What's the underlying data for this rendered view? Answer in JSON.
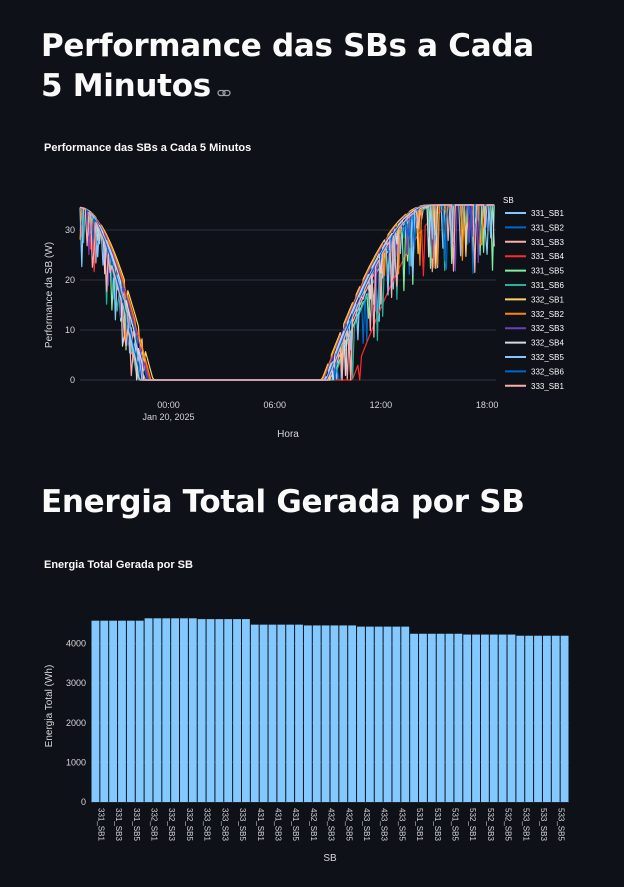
{
  "section1": {
    "heading": "Performance das SBs a Cada 5 Minutos"
  },
  "section2": {
    "heading": "Energia Total Gerada por SB"
  },
  "link_icon": "link-icon",
  "colors": {
    "background": "#0e1117",
    "grid": "#31333f",
    "bar": "#83c9ff",
    "text": "#fafafa",
    "axis_text": "#d5d6d9"
  },
  "chart_data": [
    {
      "type": "line",
      "title": "Performance das SBs a Cada 5 Minutos",
      "xlabel": "Hora",
      "ylabel": "Performance da SB (W)",
      "x_ticks": [
        {
          "time": "2025-01-20 00:00",
          "label": "00:00",
          "sublabel": "Jan 20, 2025"
        },
        {
          "time": "2025-01-20 06:00",
          "label": "06:00",
          "sublabel": ""
        },
        {
          "time": "2025-01-20 12:00",
          "label": "12:00",
          "sublabel": ""
        },
        {
          "time": "2025-01-20 18:00",
          "label": "18:00",
          "sublabel": ""
        }
      ],
      "x_range": [
        "2025-01-19 19:00",
        "2025-01-20 18:30"
      ],
      "y_ticks": [
        0,
        10,
        20,
        30
      ],
      "ylim": [
        -2,
        36
      ],
      "grid": true,
      "legend_title": "SB",
      "legend_position": "right",
      "series": [
        {
          "name": "331_SB1",
          "color": "#83c9ff"
        },
        {
          "name": "331_SB2",
          "color": "#0068c9"
        },
        {
          "name": "331_SB3",
          "color": "#ffabab"
        },
        {
          "name": "331_SB4",
          "color": "#ff2b2b"
        },
        {
          "name": "331_SB5",
          "color": "#7defa1"
        },
        {
          "name": "331_SB6",
          "color": "#29b09d"
        },
        {
          "name": "332_SB1",
          "color": "#ffd16a"
        },
        {
          "name": "332_SB2",
          "color": "#ff8700"
        },
        {
          "name": "332_SB3",
          "color": "#6d3fc0"
        },
        {
          "name": "332_SB4",
          "color": "#d5dae5"
        },
        {
          "name": "332_SB5",
          "color": "#83c9ff"
        },
        {
          "name": "332_SB6",
          "color": "#0068c9"
        },
        {
          "name": "333_SB1",
          "color": "#ffabab"
        }
      ]
    },
    {
      "type": "bar",
      "title": "Energia Total Gerada por SB",
      "xlabel": "SB",
      "ylabel": "Energia Total (Wh)",
      "y_ticks": [
        0,
        1000,
        2000,
        3000,
        4000
      ],
      "ylim": [
        0,
        4850
      ],
      "grid": true,
      "color": "#83c9ff",
      "categories": [
        "331_SB1",
        "331_SB2",
        "331_SB3",
        "331_SB4",
        "331_SB5",
        "331_SB6",
        "332_SB1",
        "332_SB2",
        "332_SB3",
        "332_SB4",
        "332_SB5",
        "332_SB6",
        "333_SB1",
        "333_SB2",
        "333_SB3",
        "333_SB4",
        "333_SB5",
        "333_SB6",
        "431_SB1",
        "431_SB2",
        "431_SB3",
        "431_SB4",
        "431_SB5",
        "431_SB6",
        "432_SB1",
        "432_SB2",
        "432_SB3",
        "432_SB4",
        "432_SB5",
        "432_SB6",
        "433_SB1",
        "433_SB2",
        "433_SB3",
        "433_SB4",
        "433_SB5",
        "433_SB6",
        "531_SB1",
        "531_SB2",
        "531_SB3",
        "531_SB4",
        "531_SB5",
        "531_SB6",
        "532_SB1",
        "532_SB2",
        "532_SB3",
        "532_SB4",
        "532_SB5",
        "532_SB6",
        "533_SB1",
        "533_SB2",
        "533_SB3",
        "533_SB4",
        "533_SB5",
        "533_SB6"
      ],
      "tick_labels": [
        "331_SB1",
        "331_SB3",
        "331_SB5",
        "332_SB1",
        "332_SB3",
        "332_SB5",
        "333_SB1",
        "333_SB3",
        "333_SB5",
        "431_SB1",
        "431_SB3",
        "431_SB5",
        "432_SB1",
        "432_SB3",
        "432_SB5",
        "433_SB1",
        "433_SB3",
        "433_SB5",
        "531_SB1",
        "531_SB3",
        "531_SB5",
        "532_SB1",
        "532_SB3",
        "532_SB5",
        "533_SB1",
        "533_SB3",
        "533_SB5"
      ],
      "values": [
        4580,
        4580,
        4580,
        4580,
        4580,
        4580,
        4640,
        4640,
        4640,
        4640,
        4640,
        4640,
        4620,
        4620,
        4620,
        4620,
        4620,
        4620,
        4480,
        4480,
        4480,
        4480,
        4480,
        4480,
        4460,
        4460,
        4460,
        4460,
        4460,
        4460,
        4430,
        4430,
        4430,
        4430,
        4430,
        4430,
        4250,
        4250,
        4250,
        4250,
        4250,
        4250,
        4230,
        4230,
        4230,
        4230,
        4230,
        4230,
        4200,
        4200,
        4200,
        4200,
        4200,
        4200
      ]
    }
  ]
}
